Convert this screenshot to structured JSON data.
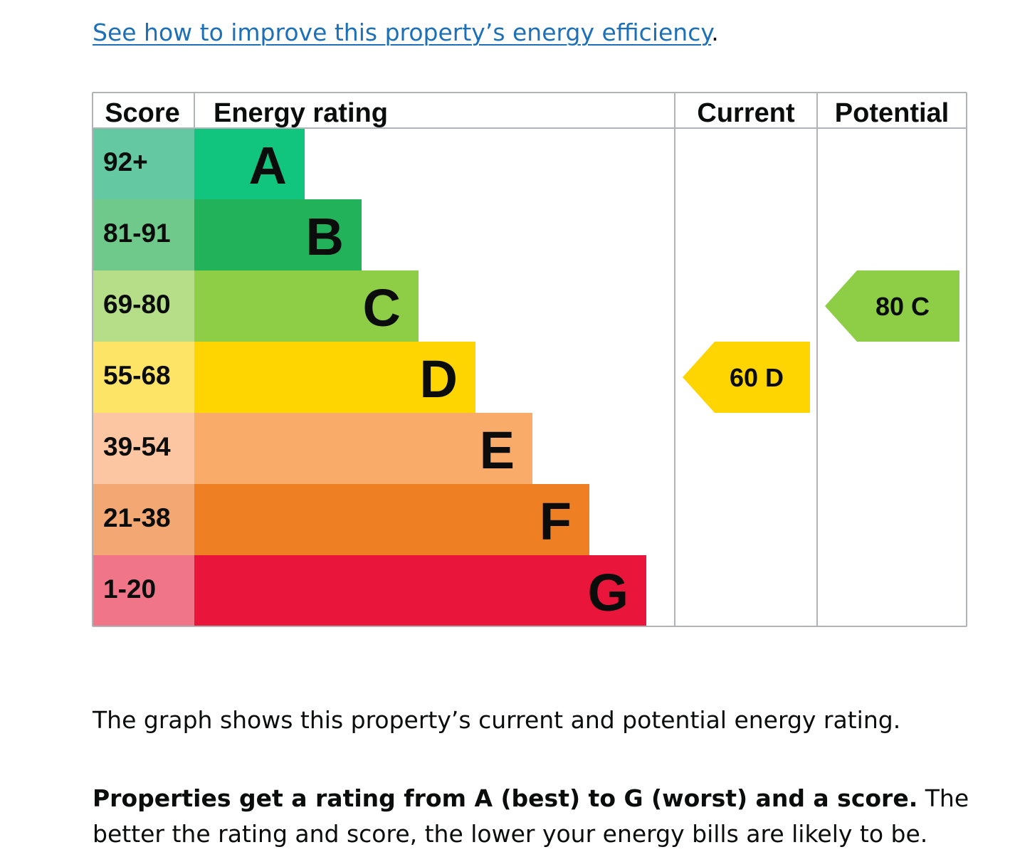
{
  "link": {
    "text": "See how to improve this property’s energy efficiency",
    "trailing": "."
  },
  "chart_data": {
    "type": "bar",
    "headers": {
      "score": "Score",
      "rating": "Energy rating",
      "current": "Current",
      "potential": "Potential"
    },
    "bands": [
      {
        "letter": "A",
        "score": "92+",
        "bar_color": "#12c57f",
        "score_color": "#64c8a3"
      },
      {
        "letter": "B",
        "score": "81-91",
        "bar_color": "#21b25a",
        "score_color": "#6ec98a"
      },
      {
        "letter": "C",
        "score": "69-80",
        "bar_color": "#8dce46",
        "score_color": "#b6dd88"
      },
      {
        "letter": "D",
        "score": "55-68",
        "bar_color": "#fed500",
        "score_color": "#fde466"
      },
      {
        "letter": "E",
        "score": "39-54",
        "bar_color": "#f9ab6a",
        "score_color": "#fcc6a2"
      },
      {
        "letter": "F",
        "score": "21-38",
        "bar_color": "#ee8023",
        "score_color": "#f3a874"
      },
      {
        "letter": "G",
        "score": "1-20",
        "bar_color": "#e9153b",
        "score_color": "#f07588"
      }
    ],
    "current": {
      "value": 60,
      "band": "D",
      "color": "#fed500"
    },
    "potential": {
      "value": 80,
      "band": "C",
      "color": "#8dce46"
    }
  },
  "captions": {
    "graph_desc": "The graph shows this property’s current and potential energy rating.",
    "bold": "Properties get a rating from A (best) to G (worst) and a score.",
    "rest": " The better the rating and score, the lower your energy bills are likely to be."
  }
}
